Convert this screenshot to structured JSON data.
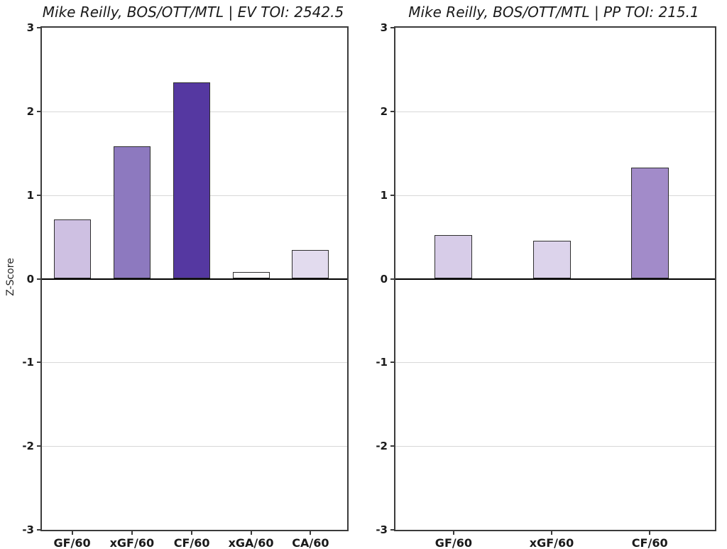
{
  "figure": {
    "background": "#ffffff",
    "axis_color": "#3b3b3b",
    "grid_color": "#d8d8d8",
    "zero_line_color": "#000000",
    "bar_edge_color": "#2f2f2f",
    "text_color": "#1a1a1a"
  },
  "chart_data": [
    {
      "type": "bar",
      "title": "Mike Reilly, BOS/OTT/MTL  |  EV TOI: 2542.5",
      "ylabel": "Z-Score",
      "xlabel": "",
      "ylim": [
        -3,
        3
      ],
      "yticks": [
        3,
        2,
        1,
        0,
        -1,
        -2,
        -3
      ],
      "grid": true,
      "legend_position": "none",
      "categories": [
        "GF/60",
        "xGF/60",
        "CF/60",
        "xGA/60",
        "CA/60"
      ],
      "values": [
        0.71,
        1.58,
        2.35,
        0.08,
        0.34
      ],
      "bar_colors": [
        "#cec0e2",
        "#8d79bf",
        "#5538a1",
        "#fcfbfd",
        "#e2dbee"
      ]
    },
    {
      "type": "bar",
      "title": "Mike Reilly, BOS/OTT/MTL  |  PP TOI: 215.1",
      "ylabel": "",
      "xlabel": "",
      "ylim": [
        -3,
        3
      ],
      "yticks": [
        3,
        2,
        1,
        0,
        -1,
        -2,
        -3
      ],
      "grid": true,
      "legend_position": "none",
      "categories": [
        "GF/60",
        "xGF/60",
        "CF/60"
      ],
      "values": [
        0.52,
        0.45,
        1.33
      ],
      "bar_colors": [
        "#d7cce8",
        "#dcd3eb",
        "#a28bc9"
      ]
    }
  ]
}
